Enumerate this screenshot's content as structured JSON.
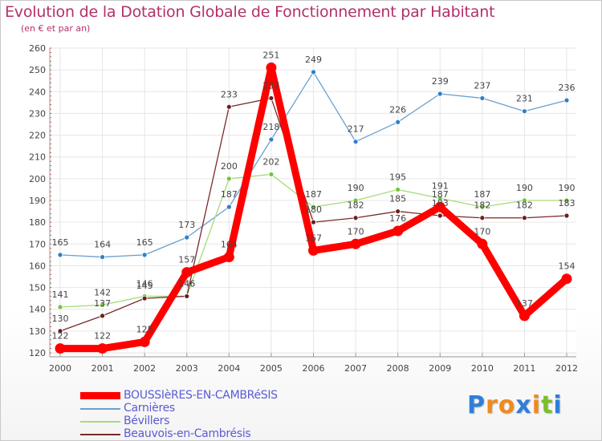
{
  "header": {
    "title": "Evolution de la Dotation Globale de Fonctionnement par Habitant",
    "subtitle": "(en € et par an)"
  },
  "logo": {
    "text": "Proxiti",
    "letters": [
      "P",
      "r",
      "o",
      "x",
      "i",
      "t",
      "i"
    ],
    "colors": [
      "#2f7fd8",
      "#f08a1c",
      "#f08a1c",
      "#2f7fd8",
      "#f08a1c",
      "#7bbf2a",
      "#2f7fd8"
    ]
  },
  "chart_data": {
    "type": "line",
    "title": "Evolution de la Dotation Globale de Fonctionnement par Habitant",
    "ylabel": "(en € et par an)",
    "xlabel": "",
    "categories": [
      "2000",
      "2001",
      "2002",
      "2003",
      "2004",
      "2005",
      "2006",
      "2007",
      "2008",
      "2009",
      "2010",
      "2011",
      "2012"
    ],
    "ylim": [
      120,
      260
    ],
    "yticks": [
      120,
      130,
      140,
      150,
      160,
      170,
      180,
      190,
      200,
      210,
      220,
      230,
      240,
      250,
      260
    ],
    "grid": true,
    "legend_position": "bottom-left",
    "series": [
      {
        "name": "BOUSSIèRES-EN-CAMBRéSIS",
        "color": "#ff0000",
        "marker_color": "#ff0000",
        "width": "thick",
        "values": [
          122,
          122,
          125,
          157,
          164,
          251,
          167,
          170,
          176,
          187,
          170,
          137,
          154
        ]
      },
      {
        "name": "Carnières",
        "color": "#6aa0d0",
        "marker_color": "#2f7fc8",
        "width": "thin",
        "values": [
          165,
          164,
          165,
          173,
          187,
          218,
          249,
          217,
          226,
          239,
          237,
          231,
          236
        ]
      },
      {
        "name": "Bévillers",
        "color": "#a6dc7a",
        "marker_color": "#72c43c",
        "width": "thin",
        "values": [
          141,
          142,
          146,
          146,
          200,
          202,
          187,
          190,
          195,
          191,
          187,
          190,
          190
        ]
      },
      {
        "name": "Beauvois-en-Cambrésis",
        "color": "#7a2a2a",
        "marker_color": "#6b1e1e",
        "width": "thin",
        "values": [
          130,
          137,
          145,
          146,
          233,
          237,
          180,
          182,
          185,
          183,
          182,
          182,
          183
        ]
      }
    ]
  }
}
